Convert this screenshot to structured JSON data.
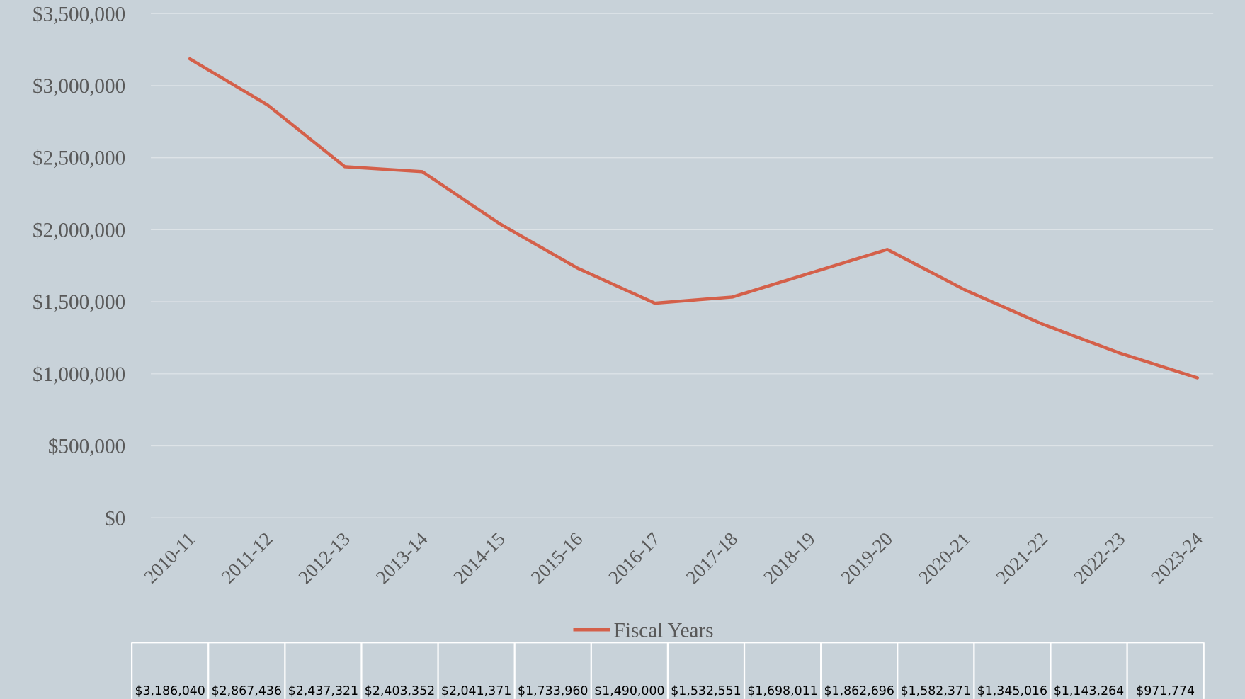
{
  "chart_data": {
    "type": "line",
    "categories": [
      "2010-11",
      "2011-12",
      "2012-13",
      "2013-14",
      "2014-15",
      "2015-16",
      "2016-17",
      "2017-18",
      "2018-19",
      "2019-20",
      "2020-21",
      "2021-22",
      "2022-23",
      "2023-24"
    ],
    "series": [
      {
        "name": "Fiscal Years",
        "color": "#d4604a",
        "values": [
          3186040,
          2867436,
          2437321,
          2403352,
          2041371,
          1733960,
          1490000,
          1532551,
          1698011,
          1862696,
          1582371,
          1345016,
          1143264,
          971774
        ],
        "value_labels": [
          "$3,186,040",
          "$2,867,436",
          "$2,437,321",
          "$2,403,352",
          "$2,041,371",
          "$1,733,960",
          "$1,490,000",
          "$1,532,551",
          "$1,698,011",
          "$1,862,696",
          "$1,582,371",
          "$1,345,016",
          "$1,143,264",
          "$971,774"
        ]
      }
    ],
    "ylim": [
      0,
      3500000
    ],
    "yticks": [
      {
        "value": 0,
        "label": "$0"
      },
      {
        "value": 500000,
        "label": "$500,000"
      },
      {
        "value": 1000000,
        "label": "$1,000,000"
      },
      {
        "value": 1500000,
        "label": "$1,500,000"
      },
      {
        "value": 2000000,
        "label": "$2,000,000"
      },
      {
        "value": 2500000,
        "label": "$2,500,000"
      },
      {
        "value": 3000000,
        "label": "$3,000,000"
      },
      {
        "value": 3500000,
        "label": "$3,500,000"
      }
    ],
    "grid": true
  }
}
